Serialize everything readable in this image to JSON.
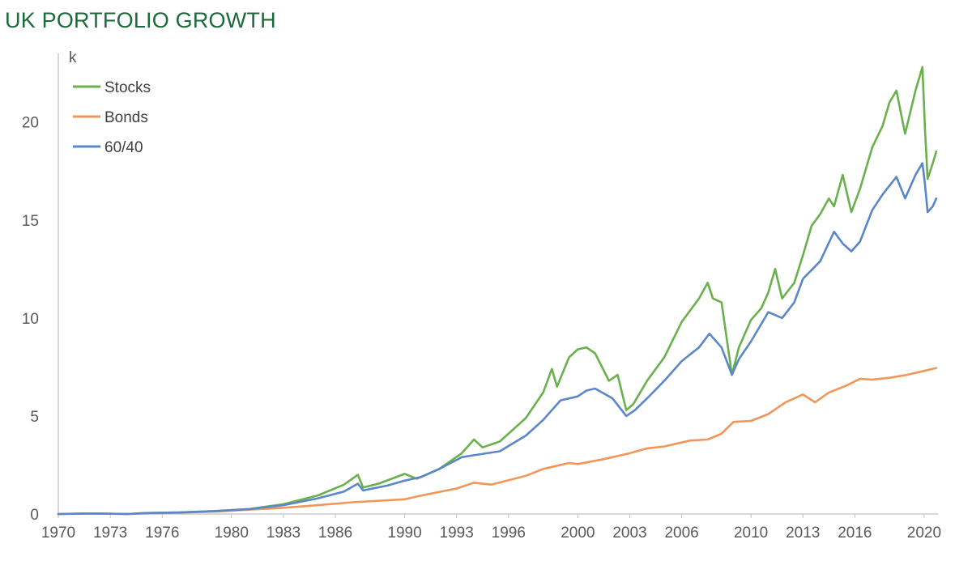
{
  "title": "UK PORTFOLIO GROWTH",
  "colors": {
    "title": "#1b6b3a",
    "stocks": "#6ab04c",
    "bonds": "#f0965a",
    "sixty_forty": "#5b87c9",
    "axis": "#bfbfbf"
  },
  "chart_data": {
    "type": "line",
    "title": "UK PORTFOLIO GROWTH",
    "xlabel": "",
    "ylabel": "",
    "y_unit_label": "k",
    "xlim": [
      1970,
      2020.8
    ],
    "ylim": [
      0,
      23.5
    ],
    "y_ticks": [
      0,
      5,
      10,
      15,
      20
    ],
    "x_ticks": [
      1970,
      1973,
      1976,
      1980,
      1983,
      1986,
      1990,
      1993,
      1996,
      2000,
      2003,
      2006,
      2010,
      2013,
      2016,
      2020
    ],
    "grid": false,
    "legend_position": "top-left",
    "series": [
      {
        "name": "Stocks",
        "color": "#6ab04c",
        "points": [
          [
            1970,
            0.0
          ],
          [
            1972,
            0.03
          ],
          [
            1974,
            0.0
          ],
          [
            1975,
            0.05
          ],
          [
            1977,
            0.08
          ],
          [
            1979,
            0.15
          ],
          [
            1981,
            0.25
          ],
          [
            1983,
            0.5
          ],
          [
            1985,
            0.95
          ],
          [
            1986.5,
            1.5
          ],
          [
            1987.3,
            2.0
          ],
          [
            1987.6,
            1.35
          ],
          [
            1988.5,
            1.55
          ],
          [
            1990,
            2.05
          ],
          [
            1990.7,
            1.8
          ],
          [
            1992,
            2.3
          ],
          [
            1993.3,
            3.1
          ],
          [
            1994,
            3.8
          ],
          [
            1994.5,
            3.4
          ],
          [
            1995.5,
            3.7
          ],
          [
            1997,
            4.9
          ],
          [
            1998,
            6.2
          ],
          [
            1998.5,
            7.4
          ],
          [
            1998.8,
            6.5
          ],
          [
            1999.5,
            8.0
          ],
          [
            2000,
            8.4
          ],
          [
            2000.5,
            8.5
          ],
          [
            2001,
            8.2
          ],
          [
            2001.8,
            6.8
          ],
          [
            2002.3,
            7.1
          ],
          [
            2002.8,
            5.3
          ],
          [
            2003.2,
            5.6
          ],
          [
            2004,
            6.8
          ],
          [
            2005,
            8.0
          ],
          [
            2006,
            9.8
          ],
          [
            2007,
            11.0
          ],
          [
            2007.5,
            11.8
          ],
          [
            2007.8,
            11.0
          ],
          [
            2008.3,
            10.8
          ],
          [
            2008.9,
            7.1
          ],
          [
            2009.3,
            8.5
          ],
          [
            2010,
            9.9
          ],
          [
            2010.6,
            10.5
          ],
          [
            2011,
            11.3
          ],
          [
            2011.4,
            12.5
          ],
          [
            2011.8,
            11.0
          ],
          [
            2012.5,
            11.8
          ],
          [
            2013,
            13.2
          ],
          [
            2013.5,
            14.7
          ],
          [
            2014,
            15.3
          ],
          [
            2014.5,
            16.1
          ],
          [
            2014.8,
            15.7
          ],
          [
            2015.3,
            17.3
          ],
          [
            2015.8,
            15.4
          ],
          [
            2016.3,
            16.6
          ],
          [
            2017,
            18.7
          ],
          [
            2017.6,
            19.8
          ],
          [
            2018,
            21.0
          ],
          [
            2018.4,
            21.6
          ],
          [
            2018.9,
            19.4
          ],
          [
            2019.5,
            21.6
          ],
          [
            2019.9,
            22.8
          ],
          [
            2020.05,
            19.6
          ],
          [
            2020.2,
            17.1
          ],
          [
            2020.5,
            17.9
          ],
          [
            2020.7,
            18.5
          ]
        ]
      },
      {
        "name": "Bonds",
        "color": "#f0965a",
        "points": [
          [
            1970,
            0.0
          ],
          [
            1972,
            0.03
          ],
          [
            1974,
            0.0
          ],
          [
            1976,
            0.05
          ],
          [
            1979,
            0.12
          ],
          [
            1981,
            0.22
          ],
          [
            1983,
            0.32
          ],
          [
            1985,
            0.45
          ],
          [
            1987,
            0.6
          ],
          [
            1990,
            0.75
          ],
          [
            1991,
            0.95
          ],
          [
            1993,
            1.3
          ],
          [
            1994,
            1.6
          ],
          [
            1995,
            1.5
          ],
          [
            1997,
            1.95
          ],
          [
            1998,
            2.3
          ],
          [
            1999.5,
            2.6
          ],
          [
            2000,
            2.55
          ],
          [
            2001.5,
            2.8
          ],
          [
            2003,
            3.1
          ],
          [
            2004,
            3.35
          ],
          [
            2005,
            3.45
          ],
          [
            2006.5,
            3.75
          ],
          [
            2007.5,
            3.8
          ],
          [
            2008.3,
            4.1
          ],
          [
            2009,
            4.7
          ],
          [
            2010,
            4.75
          ],
          [
            2011,
            5.1
          ],
          [
            2012,
            5.7
          ],
          [
            2013,
            6.1
          ],
          [
            2013.7,
            5.7
          ],
          [
            2014.5,
            6.2
          ],
          [
            2015.5,
            6.55
          ],
          [
            2016.3,
            6.9
          ],
          [
            2017,
            6.85
          ],
          [
            2018,
            6.95
          ],
          [
            2019,
            7.1
          ],
          [
            2020,
            7.3
          ],
          [
            2020.7,
            7.45
          ]
        ]
      },
      {
        "name": "60/40",
        "color": "#5b87c9",
        "points": [
          [
            1970,
            0.0
          ],
          [
            1972,
            0.03
          ],
          [
            1974,
            0.0
          ],
          [
            1975,
            0.05
          ],
          [
            1977,
            0.08
          ],
          [
            1979,
            0.15
          ],
          [
            1981,
            0.25
          ],
          [
            1983,
            0.45
          ],
          [
            1985,
            0.8
          ],
          [
            1986.5,
            1.15
          ],
          [
            1987.3,
            1.55
          ],
          [
            1987.6,
            1.2
          ],
          [
            1989,
            1.45
          ],
          [
            1990,
            1.7
          ],
          [
            1991,
            1.9
          ],
          [
            1992,
            2.3
          ],
          [
            1993.3,
            2.9
          ],
          [
            1994,
            3.0
          ],
          [
            1995.5,
            3.2
          ],
          [
            1997,
            4.0
          ],
          [
            1998,
            4.8
          ],
          [
            1999,
            5.8
          ],
          [
            2000,
            6.0
          ],
          [
            2000.5,
            6.3
          ],
          [
            2001,
            6.4
          ],
          [
            2002,
            5.9
          ],
          [
            2002.8,
            5.0
          ],
          [
            2003.3,
            5.3
          ],
          [
            2004,
            5.9
          ],
          [
            2005,
            6.8
          ],
          [
            2006,
            7.8
          ],
          [
            2007,
            8.5
          ],
          [
            2007.6,
            9.2
          ],
          [
            2008.3,
            8.5
          ],
          [
            2008.9,
            7.1
          ],
          [
            2009.3,
            7.9
          ],
          [
            2010,
            8.8
          ],
          [
            2011,
            10.3
          ],
          [
            2011.8,
            10.0
          ],
          [
            2012.5,
            10.8
          ],
          [
            2013,
            12.0
          ],
          [
            2014,
            12.9
          ],
          [
            2014.8,
            14.4
          ],
          [
            2015.3,
            13.8
          ],
          [
            2015.8,
            13.4
          ],
          [
            2016.3,
            13.9
          ],
          [
            2017,
            15.5
          ],
          [
            2017.6,
            16.3
          ],
          [
            2018.4,
            17.2
          ],
          [
            2018.9,
            16.1
          ],
          [
            2019.5,
            17.3
          ],
          [
            2019.9,
            17.9
          ],
          [
            2020.05,
            16.8
          ],
          [
            2020.2,
            15.4
          ],
          [
            2020.5,
            15.7
          ],
          [
            2020.7,
            16.1
          ]
        ]
      }
    ]
  }
}
